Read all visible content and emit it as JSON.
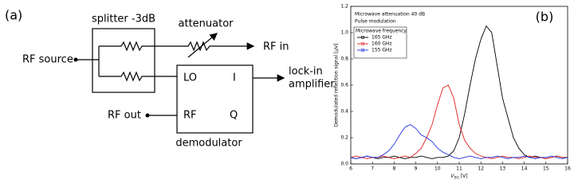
{
  "diagram": {
    "panel_label": "(a)",
    "splitter": "splitter -3dB",
    "attenuator": "attenuator",
    "rf_in": "RF in",
    "rf_source": "RF source",
    "lo": "LO",
    "i": "I",
    "lockin_1": "lock-in",
    "lockin_2": "amplifier",
    "rf_out": "RF out",
    "rf": "RF",
    "q": "Q",
    "demodulator": "demodulator"
  },
  "chart_data": {
    "type": "line",
    "panel_label": "(b)",
    "annotations": [
      "Microwave attenuation 40 dB",
      "Pulse modulation"
    ],
    "legend_title": "Microwave frequency",
    "y_label": "Demodulated reflection signal [μV]",
    "x_label": {
      "symbol": "V",
      "subscript": "SG",
      "unit": "[V]"
    },
    "x": [
      6,
      6.25,
      6.5,
      6.75,
      7,
      7.25,
      7.5,
      7.75,
      8,
      8.25,
      8.5,
      8.75,
      9,
      9.25,
      9.5,
      9.75,
      10,
      10.25,
      10.5,
      10.75,
      11,
      11.25,
      11.5,
      11.75,
      12,
      12.25,
      12.5,
      12.75,
      13,
      13.25,
      13.5,
      13.75,
      14,
      14.25,
      14.5,
      14.75,
      15,
      15.25,
      15.5,
      15.75,
      16
    ],
    "series": [
      {
        "name": "165 GHz",
        "color": "#000000",
        "values": [
          0.05,
          0.04,
          0.05,
          0.06,
          0.05,
          0.04,
          0.05,
          0.05,
          0.06,
          0.05,
          0.04,
          0.05,
          0.05,
          0.06,
          0.05,
          0.04,
          0.05,
          0.05,
          0.06,
          0.1,
          0.2,
          0.38,
          0.6,
          0.8,
          0.95,
          1.05,
          1.0,
          0.75,
          0.5,
          0.35,
          0.2,
          0.12,
          0.07,
          0.05,
          0.06,
          0.05,
          0.04,
          0.05,
          0.06,
          0.05,
          0.05
        ]
      },
      {
        "name": "160 GHz",
        "color": "#e02020",
        "values": [
          0.05,
          0.06,
          0.05,
          0.04,
          0.05,
          0.05,
          0.06,
          0.05,
          0.04,
          0.05,
          0.06,
          0.05,
          0.08,
          0.12,
          0.2,
          0.3,
          0.45,
          0.58,
          0.6,
          0.5,
          0.3,
          0.18,
          0.12,
          0.08,
          0.06,
          0.05,
          0.04,
          0.05,
          0.06,
          0.05,
          0.05,
          0.04,
          0.05,
          0.06,
          0.05,
          0.05,
          0.04,
          0.05,
          0.06,
          0.05,
          0.05
        ]
      },
      {
        "name": "155 GHz",
        "color": "#2030e0",
        "values": [
          0.05,
          0.04,
          0.05,
          0.06,
          0.05,
          0.05,
          0.07,
          0.1,
          0.15,
          0.22,
          0.28,
          0.3,
          0.27,
          0.22,
          0.2,
          0.17,
          0.12,
          0.09,
          0.07,
          0.05,
          0.04,
          0.05,
          0.06,
          0.05,
          0.04,
          0.05,
          0.05,
          0.06,
          0.05,
          0.04,
          0.05,
          0.05,
          0.06,
          0.05,
          0.04,
          0.05,
          0.05,
          0.06,
          0.05,
          0.04,
          0.05
        ]
      }
    ],
    "xlim": [
      6,
      16
    ],
    "xticks": [
      6,
      7,
      8,
      9,
      10,
      11,
      12,
      13,
      14,
      15,
      16
    ],
    "ylim": [
      0,
      1.2
    ],
    "yticks": [
      {
        "value": 0,
        "label": "0.0"
      },
      0.2,
      0.4,
      0.6,
      0.8,
      {
        "value": 1,
        "label": "1.0"
      },
      1.2
    ]
  }
}
